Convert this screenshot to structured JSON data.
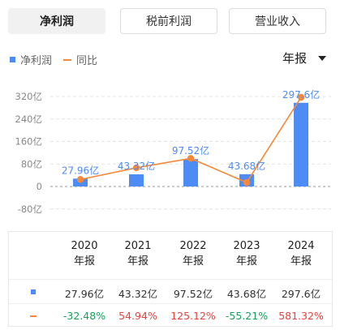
{
  "tabs": [
    {
      "label": "净利润",
      "active": true
    },
    {
      "label": "税前利润",
      "active": false
    },
    {
      "label": "营业收入",
      "active": false
    }
  ],
  "legend": {
    "bar_label": "净利润",
    "line_label": "同比"
  },
  "period_selector": {
    "value": "年报",
    "icon": "caret-down-icon"
  },
  "colors": {
    "bar": "#4e8cf5",
    "line": "#f7883a",
    "positive": "#e8413c",
    "negative": "#1aa05a"
  },
  "chart_data": {
    "type": "bar",
    "categories": [
      "2020",
      "2021",
      "2022",
      "2023",
      "2024"
    ],
    "y_ticks": [
      "320亿",
      "240亿",
      "160亿",
      "80亿",
      "0",
      "-80亿"
    ],
    "ylim": [
      -80,
      320
    ],
    "series": [
      {
        "name": "净利润",
        "type": "bar",
        "values": [
          27.96,
          43.32,
          97.52,
          43.68,
          297.6
        ],
        "labels": [
          "27.96亿",
          "43.32亿",
          "97.52亿",
          "43.68亿",
          "297.6亿"
        ]
      },
      {
        "name": "同比",
        "type": "line",
        "values": [
          -32.48,
          54.94,
          125.12,
          -55.21,
          581.32
        ]
      }
    ]
  },
  "table": {
    "columns": [
      "2020\n年报",
      "2021\n年报",
      "2022\n年报",
      "2023\n年报",
      "2024\n年报"
    ],
    "values": [
      "27.96亿",
      "43.32亿",
      "97.52亿",
      "43.68亿",
      "297.6亿"
    ],
    "yoy": [
      "-32.48%",
      "54.94%",
      "125.12%",
      "-55.21%",
      "581.32%"
    ]
  }
}
